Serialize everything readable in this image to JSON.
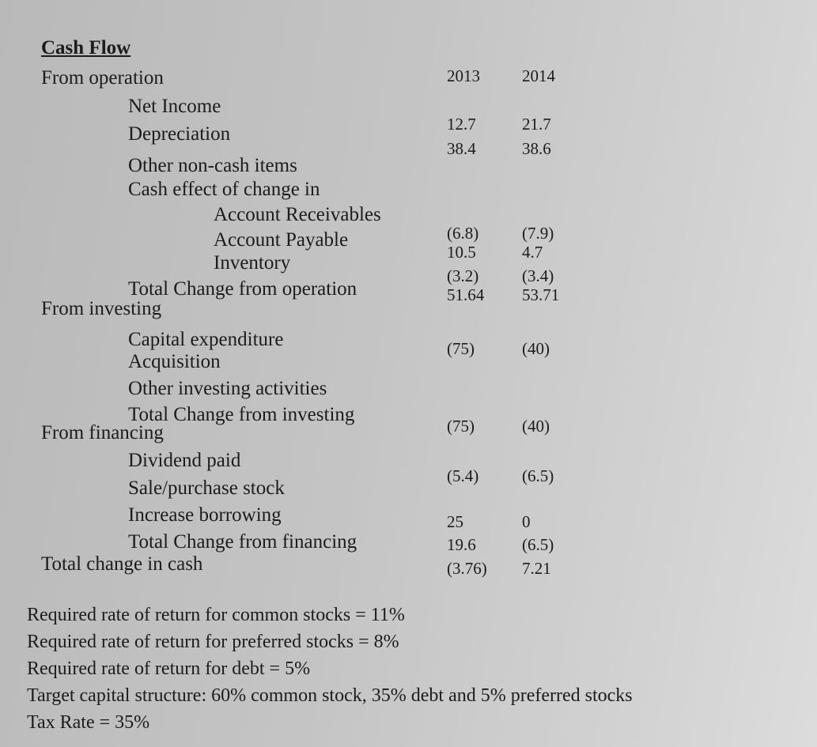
{
  "title": "Cash Flow",
  "columns": [
    "2013",
    "2014"
  ],
  "rows": [
    {
      "label": "From operation"
    },
    {
      "label": "Net Income",
      "values": [
        "12.7",
        "21.7"
      ]
    },
    {
      "label": "Depreciation",
      "values": [
        "38.4",
        "38.6"
      ]
    },
    {
      "label": "Other non-cash items"
    },
    {
      "label": "Cash effect of change in"
    },
    {
      "label": "Account Receivables",
      "values": [
        "(6.8)",
        "(7.9)"
      ]
    },
    {
      "label": "Account Payable",
      "values": [
        "10.5",
        "4.7"
      ]
    },
    {
      "label": "Inventory",
      "values": [
        "(3.2)",
        "(3.4)"
      ]
    },
    {
      "label": "Total Change from operation",
      "values": [
        "51.64",
        "53.71"
      ]
    },
    {
      "label": "From investing"
    },
    {
      "label": "Capital expenditure",
      "values": [
        "(75)",
        "(40)"
      ]
    },
    {
      "label": "Acquisition"
    },
    {
      "label": "Other investing activities"
    },
    {
      "label": "Total Change from investing",
      "values": [
        "(75)",
        "(40)"
      ]
    },
    {
      "label": "From financing"
    },
    {
      "label": "Dividend paid",
      "values": [
        "(5.4)",
        "(6.5)"
      ]
    },
    {
      "label": "Sale/purchase stock"
    },
    {
      "label": "Increase borrowing",
      "values": [
        "25",
        "0"
      ]
    },
    {
      "label": "Total Change from financing",
      "values": [
        "19.6",
        "(6.5)"
      ]
    },
    {
      "label": "Total change in cash",
      "values": [
        "(3.76)",
        "7.21"
      ]
    }
  ],
  "notes": [
    "Required rate of return for common stocks = 11%",
    "Required rate of return for preferred stocks = 8%",
    "Required rate of return for debt = 5%",
    "Target capital structure: 60% common stock, 35% debt and 5% preferred stocks",
    "Tax Rate = 35%"
  ]
}
